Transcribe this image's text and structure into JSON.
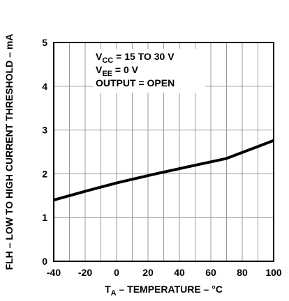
{
  "chart_data": {
    "type": "line",
    "xlabel": {
      "main": "T",
      "sub": "A",
      "rest": " – TEMPERATURE – °C"
    },
    "ylabel": "FLH – LOW TO HIGH CURRENT THRESHOLD – mA",
    "xlim": [
      -40,
      100
    ],
    "ylim": [
      0,
      5
    ],
    "xticks": [
      -40,
      -20,
      0,
      20,
      40,
      60,
      80,
      100
    ],
    "yticks": [
      0,
      1,
      2,
      3,
      4,
      5
    ],
    "x_minor_step": 10,
    "grid": true,
    "series": [
      {
        "x": [
          -40,
          -20,
          0,
          25,
          70,
          100
        ],
        "y": [
          1.4,
          1.6,
          1.79,
          2.0,
          2.35,
          2.76
        ]
      }
    ],
    "annotations": [
      {
        "main": "V",
        "sub": "CC",
        "rest": " = 15 TO 30 V"
      },
      {
        "main": "V",
        "sub": "EE",
        "rest": " = 0 V"
      },
      {
        "main": "OUTPUT = OPEN",
        "sub": "",
        "rest": ""
      }
    ]
  }
}
